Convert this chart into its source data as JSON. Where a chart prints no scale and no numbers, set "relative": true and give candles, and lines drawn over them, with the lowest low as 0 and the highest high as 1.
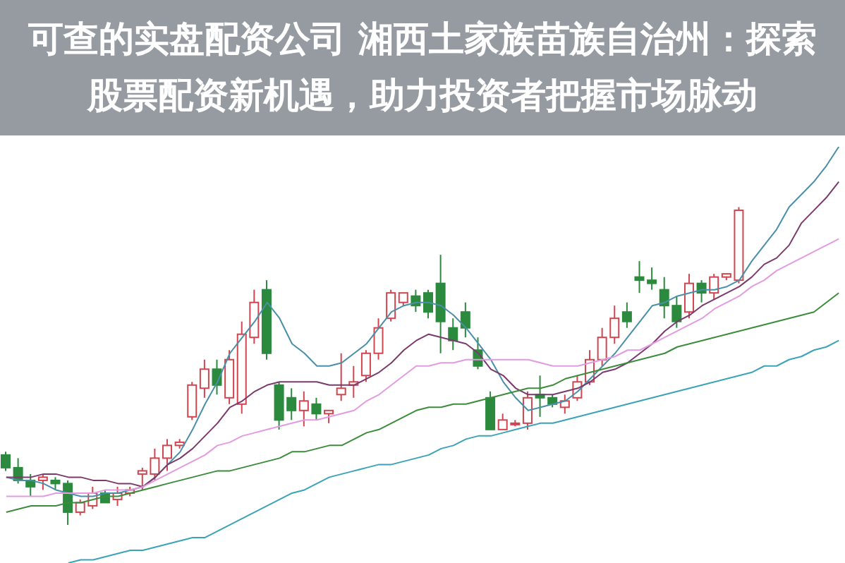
{
  "chart_data": {
    "type": "candlestick",
    "title": "可查的实盘配资公司 湘西土家族苗族自治州：探索股票配资新机遇，助力投资者把握市场脉动",
    "relative": true,
    "categories": [
      null,
      null,
      null,
      null,
      null,
      null,
      null,
      null,
      null,
      null,
      null,
      null,
      null,
      null,
      null,
      null,
      null,
      null,
      null,
      null,
      null,
      null,
      null,
      null,
      null,
      null,
      null,
      null,
      null,
      null,
      null,
      null,
      null,
      null,
      null,
      null,
      null,
      null,
      null,
      null,
      null,
      null,
      null,
      null,
      null,
      null,
      null,
      null,
      null,
      null,
      null,
      null,
      null,
      null,
      null,
      null,
      null,
      null,
      null,
      null,
      null,
      null,
      null,
      null,
      null,
      null,
      null,
      null
    ],
    "ohlc": [
      [
        0.22,
        0.23,
        0.17,
        0.18
      ],
      [
        0.18,
        0.21,
        0.13,
        0.14
      ],
      [
        0.14,
        0.16,
        0.09,
        0.12
      ],
      [
        0.14,
        0.16,
        0.11,
        0.15
      ],
      [
        0.14,
        0.15,
        0.11,
        0.13
      ],
      [
        0.13,
        0.14,
        0,
        0.04
      ],
      [
        0.04,
        0.08,
        0.03,
        0.07
      ],
      [
        0.06,
        0.12,
        0.05,
        0.1
      ],
      [
        0.1,
        0.11,
        0.07,
        0.07
      ],
      [
        0.08,
        0.12,
        0.06,
        0.1
      ],
      [
        0.1,
        0.12,
        0.09,
        0.11
      ],
      [
        0.16,
        0.18,
        0.11,
        0.17
      ],
      [
        0.16,
        0.24,
        0.14,
        0.21
      ],
      [
        0.21,
        0.27,
        0.17,
        0.25
      ],
      [
        0.25,
        0.27,
        0.24,
        0.26
      ],
      [
        0.34,
        0.45,
        0.33,
        0.44
      ],
      [
        0.43,
        0.52,
        0.4,
        0.49
      ],
      [
        0.49,
        0.52,
        0.41,
        0.44
      ],
      [
        0.4,
        0.55,
        0.38,
        0.52
      ],
      [
        0.38,
        0.64,
        0.35,
        0.6
      ],
      [
        0.59,
        0.74,
        0.57,
        0.7
      ],
      [
        0.74,
        0.77,
        0.52,
        0.54
      ],
      [
        0.44,
        0.45,
        0.3,
        0.33
      ],
      [
        0.4,
        0.43,
        0.33,
        0.36
      ],
      [
        0.36,
        0.42,
        0.31,
        0.39
      ],
      [
        0.38,
        0.4,
        0.33,
        0.35
      ],
      [
        0.35,
        0.36,
        0.32,
        0.36
      ],
      [
        0.41,
        0.54,
        0.39,
        0.43
      ],
      [
        0.44,
        0.5,
        0.4,
        0.45
      ],
      [
        0.47,
        0.55,
        0.45,
        0.54
      ],
      [
        0.54,
        0.65,
        0.52,
        0.62
      ],
      [
        0.65,
        0.74,
        0.64,
        0.73
      ],
      [
        0.7,
        0.73,
        0.69,
        0.73
      ],
      [
        0.72,
        0.74,
        0.67,
        0.69
      ],
      [
        0.73,
        0.74,
        0.65,
        0.67
      ],
      [
        0.76,
        0.85,
        0.54,
        0.64
      ],
      [
        0.62,
        0.65,
        0.55,
        0.58
      ],
      [
        0.67,
        0.7,
        0.59,
        0.62
      ],
      [
        0.55,
        0.59,
        0.49,
        0.5
      ],
      [
        0.4,
        0.42,
        0.3,
        0.3
      ],
      [
        0.3,
        0.35,
        0.3,
        0.33
      ],
      [
        0.32,
        0.33,
        0.31,
        0.32
      ],
      [
        0.32,
        0.42,
        0.3,
        0.4
      ],
      [
        0.41,
        0.47,
        0.34,
        0.4
      ],
      [
        0.4,
        0.41,
        0.37,
        0.38
      ],
      [
        0.37,
        0.41,
        0.35,
        0.39
      ],
      [
        0.4,
        0.47,
        0.39,
        0.45
      ],
      [
        0.45,
        0.55,
        0.44,
        0.52
      ],
      [
        0.52,
        0.62,
        0.5,
        0.59
      ],
      [
        0.59,
        0.69,
        0.57,
        0.65
      ],
      [
        0.67,
        0.7,
        0.62,
        0.64
      ],
      [
        0.78,
        0.83,
        0.73,
        0.77
      ],
      [
        0.77,
        0.81,
        0.74,
        0.76
      ],
      [
        0.74,
        0.78,
        0.65,
        0.69
      ],
      [
        0.69,
        0.72,
        0.62,
        0.64
      ],
      [
        0.67,
        0.79,
        0.65,
        0.76
      ],
      [
        0.76,
        0.77,
        0.7,
        0.73
      ],
      [
        0.73,
        0.79,
        0.71,
        0.78
      ],
      [
        0.78,
        0.79,
        0.77,
        0.79
      ],
      [
        0.77,
        1.0,
        0.76,
        0.99
      ],
      null,
      null,
      null,
      null,
      null,
      null,
      null,
      null
    ],
    "series": [
      {
        "type": "line",
        "color": "#4a8fa8",
        "values": [
          0.15,
          0.14,
          0.14,
          0.13,
          0.11,
          0.1,
          0.09,
          0.09,
          0.1,
          0.1,
          0.11,
          0.12,
          0.15,
          0.19,
          0.23,
          0.3,
          0.38,
          0.45,
          0.54,
          0.59,
          0.64,
          0.7,
          0.65,
          0.57,
          0.54,
          0.5,
          0.5,
          0.51,
          0.54,
          0.57,
          0.62,
          0.67,
          0.69,
          0.7,
          0.7,
          0.69,
          0.66,
          0.62,
          0.57,
          0.52,
          0.45,
          0.4,
          0.36,
          0.37,
          0.38,
          0.39,
          0.42,
          0.46,
          0.5,
          0.54,
          0.59,
          0.64,
          0.69,
          0.7,
          0.72,
          0.73,
          0.74,
          0.74,
          0.75,
          0.77,
          0.83,
          0.88,
          0.93,
          1.0,
          1.04,
          1.08,
          1.13,
          1.19
        ]
      },
      {
        "type": "line",
        "color": "#7a3a6c",
        "values": [
          0.15,
          0.15,
          0.15,
          0.16,
          0.16,
          0.15,
          0.15,
          0.14,
          0.14,
          0.13,
          0.13,
          0.12,
          0.15,
          0.19,
          0.21,
          0.24,
          0.28,
          0.32,
          0.37,
          0.39,
          0.42,
          0.44,
          0.45,
          0.45,
          0.45,
          0.45,
          0.44,
          0.44,
          0.44,
          0.46,
          0.48,
          0.51,
          0.55,
          0.58,
          0.6,
          0.59,
          0.58,
          0.57,
          0.54,
          0.49,
          0.47,
          0.43,
          0.41,
          0.41,
          0.41,
          0.42,
          0.43,
          0.45,
          0.48,
          0.49,
          0.51,
          0.54,
          0.57,
          0.61,
          0.64,
          0.66,
          0.69,
          0.71,
          0.73,
          0.75,
          0.78,
          0.82,
          0.84,
          0.88,
          0.95,
          0.99,
          1.03,
          1.08
        ]
      },
      {
        "type": "line",
        "color": "#e39be0",
        "values": [
          0.09,
          0.09,
          0.09,
          0.09,
          0.1,
          0.1,
          0.1,
          0.1,
          0.11,
          0.11,
          0.11,
          0.12,
          0.14,
          0.16,
          0.18,
          0.2,
          0.22,
          0.25,
          0.26,
          0.28,
          0.29,
          0.3,
          0.31,
          0.32,
          0.33,
          0.33,
          0.34,
          0.35,
          0.36,
          0.39,
          0.41,
          0.44,
          0.47,
          0.5,
          0.5,
          0.51,
          0.51,
          0.52,
          0.52,
          0.52,
          0.52,
          0.52,
          0.52,
          0.51,
          0.5,
          0.5,
          0.5,
          0.51,
          0.52,
          0.53,
          0.55,
          0.55,
          0.57,
          0.59,
          0.61,
          0.63,
          0.65,
          0.68,
          0.7,
          0.72,
          0.75,
          0.77,
          0.8,
          0.82,
          0.84,
          0.86,
          0.88,
          0.9
        ]
      },
      {
        "type": "line",
        "color": "#3d8b3d",
        "values": [
          0.04,
          0.05,
          0.06,
          0.06,
          0.06,
          0.07,
          0.07,
          0.08,
          0.09,
          0.09,
          0.1,
          0.11,
          0.12,
          0.13,
          0.14,
          0.15,
          0.16,
          0.17,
          0.17,
          0.18,
          0.19,
          0.2,
          0.21,
          0.23,
          0.23,
          0.24,
          0.25,
          0.25,
          0.27,
          0.29,
          0.3,
          0.32,
          0.34,
          0.36,
          0.37,
          0.37,
          0.38,
          0.38,
          0.39,
          0.4,
          0.41,
          0.42,
          0.43,
          0.43,
          0.44,
          0.46,
          0.47,
          0.48,
          0.49,
          0.5,
          0.51,
          0.52,
          0.53,
          0.54,
          0.56,
          0.57,
          0.58,
          0.59,
          0.6,
          0.61,
          0.62,
          0.63,
          0.64,
          0.65,
          0.66,
          0.67,
          0.7,
          0.73
        ]
      },
      {
        "type": "line",
        "color": "#3ba3b8",
        "values": [
          null,
          null,
          null,
          null,
          null,
          -0.12,
          -0.11,
          -0.11,
          -0.1,
          -0.09,
          -0.08,
          -0.08,
          -0.07,
          -0.06,
          -0.05,
          -0.04,
          -0.04,
          -0.02,
          0,
          0.02,
          0.04,
          0.06,
          0.08,
          0.1,
          0.11,
          0.13,
          0.15,
          0.16,
          0.17,
          0.18,
          0.19,
          0.19,
          0.2,
          0.21,
          0.22,
          0.24,
          0.25,
          0.27,
          0.28,
          0.28,
          0.29,
          0.3,
          0.31,
          0.32,
          0.32,
          0.33,
          0.34,
          0.35,
          0.36,
          0.37,
          0.38,
          0.39,
          0.4,
          0.41,
          0.42,
          0.43,
          0.44,
          0.45,
          0.46,
          0.47,
          0.48,
          0.5,
          0.5,
          0.52,
          0.53,
          0.55,
          0.56,
          0.58
        ]
      }
    ]
  }
}
